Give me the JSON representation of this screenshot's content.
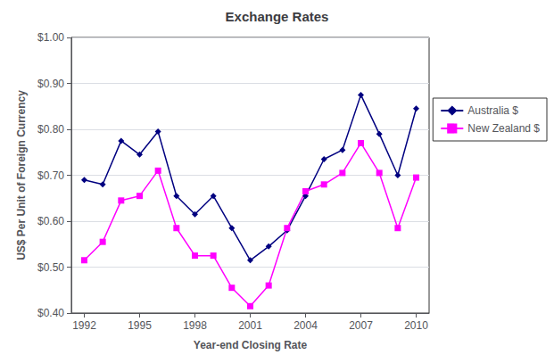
{
  "chart_data": {
    "type": "line",
    "title": "Exchange Rates",
    "x_label": "Year-end Closing Rate",
    "y_label": "US$ Per Unit of Foreign Currency",
    "x": [
      1992,
      1993,
      1994,
      1995,
      1996,
      1997,
      1998,
      1999,
      2000,
      2001,
      2002,
      2003,
      2004,
      2005,
      2006,
      2007,
      2008,
      2009,
      2010
    ],
    "series": [
      {
        "name": "Australia $",
        "color": "#000080",
        "marker": "diamond",
        "values": [
          0.69,
          0.68,
          0.775,
          0.745,
          0.795,
          0.655,
          0.615,
          0.655,
          0.585,
          0.515,
          0.545,
          0.58,
          0.655,
          0.735,
          0.755,
          0.875,
          0.79,
          0.7,
          0.845
        ]
      },
      {
        "name": "New Zealand $",
        "color": "#FF00FF",
        "marker": "square",
        "values": [
          0.515,
          0.555,
          0.645,
          0.655,
          0.71,
          0.585,
          0.525,
          0.525,
          0.455,
          0.415,
          0.46,
          0.585,
          0.665,
          0.68,
          0.705,
          0.77,
          0.705,
          0.585,
          0.695
        ]
      }
    ],
    "xlim": [
      1991.3,
      2010.7
    ],
    "xticks": [
      1992,
      1995,
      1998,
      2001,
      2004,
      2007,
      2010
    ],
    "ylim": [
      0.4,
      1.0
    ],
    "yticks": [
      {
        "value": 0.4,
        "label": "$0.40"
      },
      {
        "value": 0.5,
        "label": "$0.50"
      },
      {
        "value": 0.6,
        "label": "$0.60"
      },
      {
        "value": 0.7,
        "label": "$0.70"
      },
      {
        "value": 0.8,
        "label": "$0.80"
      },
      {
        "value": 0.9,
        "label": "$0.90"
      },
      {
        "value": 1.0,
        "label": "$1.00"
      }
    ],
    "grid": true,
    "legend": "right"
  }
}
